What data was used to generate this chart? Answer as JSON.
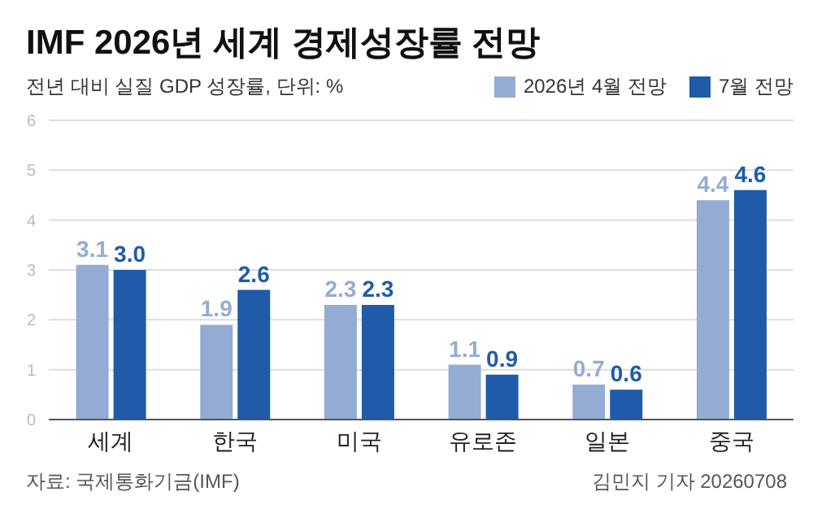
{
  "chart_data": {
    "type": "bar",
    "title": "IMF 2026년 세계 경제성장률 전망",
    "subtitle": "전년 대비 실질 GDP 성장률, 단위: %",
    "categories": [
      "세계",
      "한국",
      "미국",
      "유로존",
      "일본",
      "중국"
    ],
    "series": [
      {
        "name": "2026년 4월 전망",
        "color": "#94acd4",
        "values": [
          3.1,
          1.9,
          2.3,
          1.1,
          0.7,
          4.4
        ],
        "value_labels": [
          "3.1",
          "1.9",
          "2.3",
          "1.1",
          "0.7",
          "4.4"
        ]
      },
      {
        "name": "7월 전망",
        "color": "#1f5ba8",
        "values": [
          3.0,
          2.6,
          2.3,
          0.9,
          0.6,
          4.6
        ],
        "value_labels": [
          "3.0",
          "2.6",
          "2.3",
          "0.9",
          "0.6",
          "4.6"
        ]
      }
    ],
    "ylim": [
      0,
      6
    ],
    "yticks": [
      0,
      1,
      2,
      3,
      4,
      5,
      6
    ],
    "grid": "y",
    "legend": "top right",
    "annotations": [
      "자료: 국제통화기금(IMF)",
      "김민지 기자 20260708"
    ]
  }
}
